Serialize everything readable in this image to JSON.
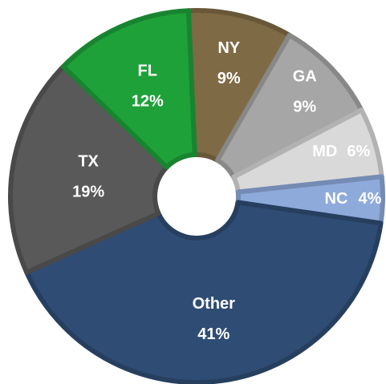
{
  "chart_data": {
    "type": "donut",
    "categories": [
      "NY",
      "GA",
      "MD",
      "NC",
      "Other",
      "TX",
      "FL"
    ],
    "values": [
      9,
      9,
      6,
      4,
      41,
      19,
      12
    ],
    "value_labels": [
      "9%",
      "9%",
      "6%",
      "4%",
      "41%",
      "19%",
      "12%"
    ],
    "colors": [
      "#7f6a46",
      "#a6a6a6",
      "#d9d9d9",
      "#8eaadb",
      "#2f4d74",
      "#595959",
      "#1fa13a"
    ]
  }
}
